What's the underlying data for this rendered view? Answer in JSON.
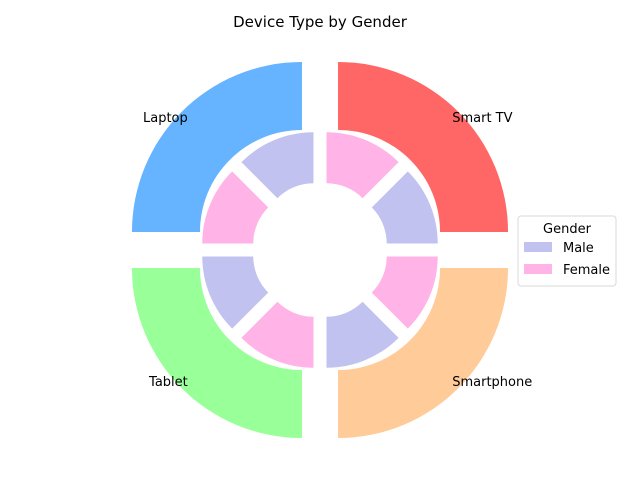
{
  "chart_data": {
    "type": "pie",
    "subtype": "nested-donut",
    "title": "Device Type by Gender",
    "categories": [
      "Laptop",
      "Tablet",
      "Smartphone",
      "Smart TV"
    ],
    "values": [
      25,
      25,
      25,
      25
    ],
    "colors": [
      "#66b3ff",
      "#99ff99",
      "#ffcc99",
      "#ff6666"
    ],
    "inner": {
      "labels": [
        "Male",
        "Female"
      ],
      "colors": [
        "#c2c2f0",
        "#ffb3e6"
      ],
      "values": [
        [
          12.5,
          12.5
        ],
        [
          12.5,
          12.5
        ],
        [
          12.5,
          12.5
        ],
        [
          12.5,
          12.5
        ]
      ]
    },
    "legend": {
      "title": "Gender",
      "entries": [
        "Male",
        "Female"
      ],
      "position": "right"
    }
  }
}
